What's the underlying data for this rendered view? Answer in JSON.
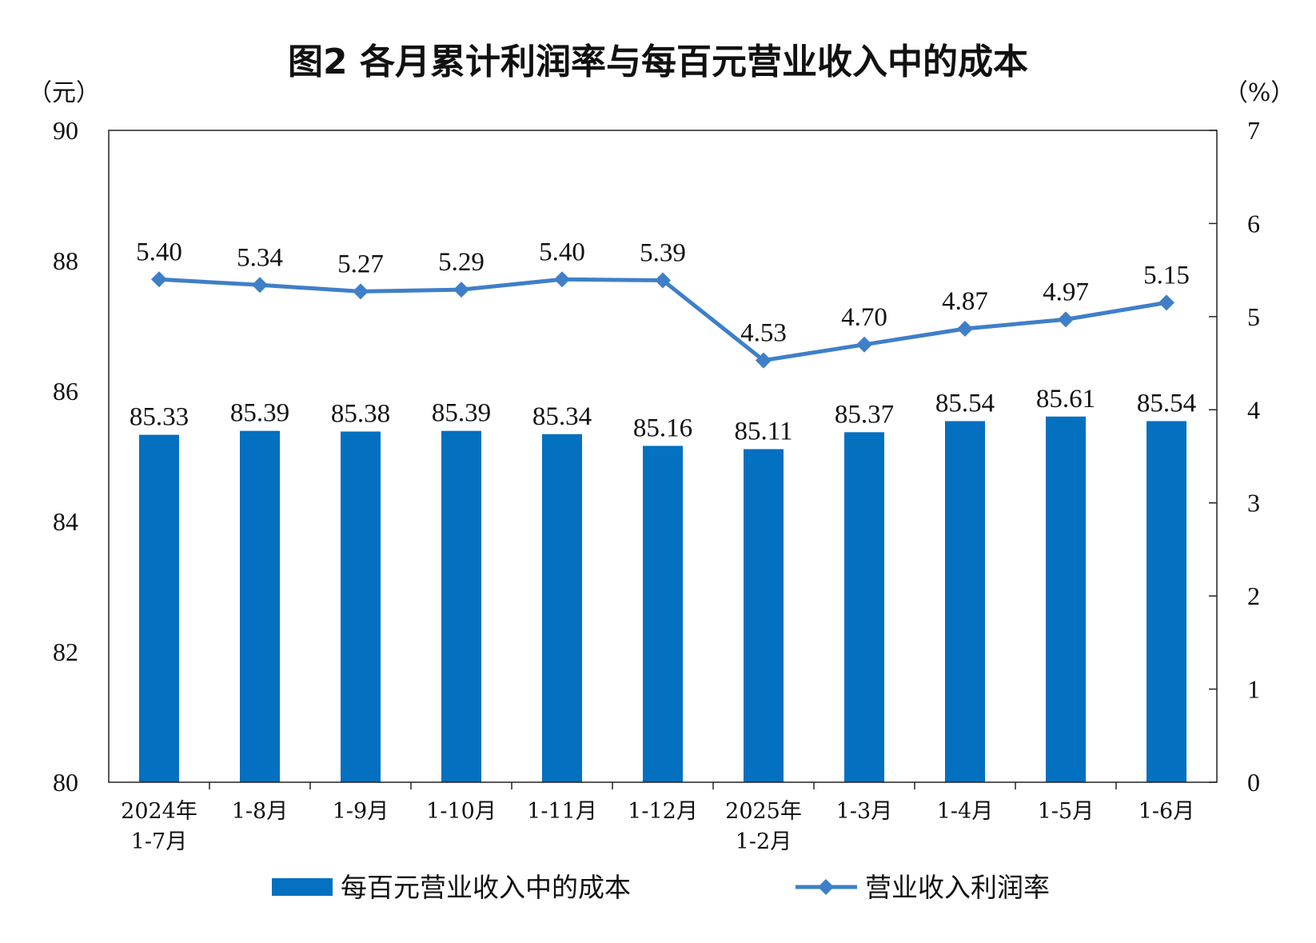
{
  "chart_data": {
    "type": "bar",
    "title": "图2  各月累计利润率与每百元营业收入中的成本",
    "left_unit": "（元）",
    "right_unit": "（%）",
    "categories": [
      [
        "2024年",
        "1-7月"
      ],
      [
        "1-8月"
      ],
      [
        "1-9月"
      ],
      [
        "1-10月"
      ],
      [
        "1-11月"
      ],
      [
        "1-12月"
      ],
      [
        "2025年",
        "1-2月"
      ],
      [
        "1-3月"
      ],
      [
        "1-4月"
      ],
      [
        "1-5月"
      ],
      [
        "1-6月"
      ]
    ],
    "series": [
      {
        "name": "每百元营业收入中的成本",
        "type": "bar",
        "axis": "left",
        "values": [
          85.33,
          85.39,
          85.38,
          85.39,
          85.34,
          85.16,
          85.11,
          85.37,
          85.54,
          85.61,
          85.54
        ],
        "labels": [
          "85.33",
          "85.39",
          "85.38",
          "85.39",
          "85.34",
          "85.16",
          "85.11",
          "85.37",
          "85.54",
          "85.61",
          "85.54"
        ]
      },
      {
        "name": "营业收入利润率",
        "type": "line",
        "axis": "right",
        "values": [
          5.4,
          5.34,
          5.27,
          5.29,
          5.4,
          5.39,
          4.53,
          4.7,
          4.87,
          4.97,
          5.15
        ],
        "labels": [
          "5.40",
          "5.34",
          "5.27",
          "5.29",
          "5.40",
          "5.39",
          "4.53",
          "4.70",
          "4.87",
          "4.97",
          "5.15"
        ]
      }
    ],
    "y_left": {
      "min": 80,
      "max": 90,
      "ticks": [
        80,
        82,
        84,
        86,
        88,
        90
      ]
    },
    "y_right": {
      "min": 0,
      "max": 7,
      "ticks": [
        0,
        1,
        2,
        3,
        4,
        5,
        6,
        7
      ]
    },
    "legend_position": "bottom",
    "grid": false,
    "colors": {
      "bar": "#0470c0",
      "line": "#3f7fc8",
      "axis": "#222222"
    }
  }
}
